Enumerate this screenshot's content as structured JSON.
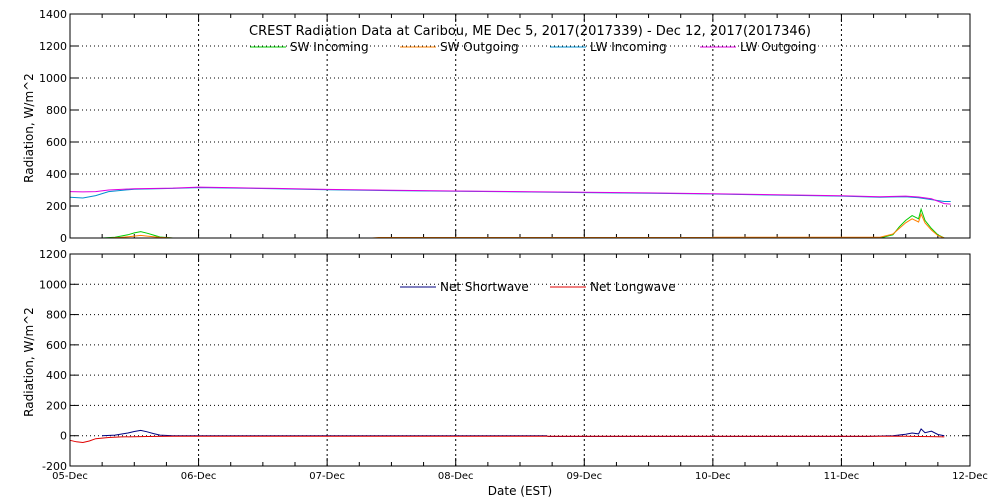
{
  "chart_data": {
    "title": "CREST Radiation Data at Caribou, ME   Dec  5, 2017(2017339) - Dec 12, 2017(2017346)",
    "xlabel": "Date (EST)",
    "x_ticks": [
      "05-Dec",
      "06-Dec",
      "07-Dec",
      "08-Dec",
      "09-Dec",
      "10-Dec",
      "11-Dec",
      "12-Dec"
    ],
    "xlim": [
      0,
      7
    ],
    "panels": [
      {
        "id": "top",
        "type": "line",
        "ylabel": "Radiation, W/m^2",
        "ylim": [
          0,
          1400
        ],
        "y_ticks": [
          0,
          200,
          400,
          600,
          800,
          1000,
          1200,
          1400
        ],
        "grid": true,
        "legend_position": "top",
        "series": [
          {
            "name": "SW Incoming",
            "color": "#00cc00",
            "x": [
              0.25,
              0.35,
              0.45,
              0.5,
              0.55,
              0.6,
              0.65,
              0.7,
              0.8,
              6.3,
              6.4,
              6.45,
              6.5,
              6.55,
              6.6,
              6.62,
              6.65,
              6.7,
              6.75,
              6.8
            ],
            "y": [
              0,
              5,
              20,
              32,
              40,
              30,
              18,
              6,
              0,
              0,
              20,
              70,
              110,
              140,
              120,
              180,
              110,
              60,
              20,
              0
            ]
          },
          {
            "name": "SW Outgoing",
            "color": "#ff8000",
            "x": [
              0.3,
              0.4,
              0.5,
              0.55,
              0.6,
              0.7,
              0.8,
              2.35,
              2.4,
              3.0,
              4.0,
              5.0,
              5.01,
              6.0,
              6.3,
              6.4,
              6.45,
              6.5,
              6.55,
              6.6,
              6.62,
              6.65,
              6.7,
              6.75,
              6.8
            ],
            "y": [
              0,
              4,
              12,
              16,
              12,
              4,
              0,
              0,
              3,
              3,
              3,
              3,
              5,
              5,
              5,
              25,
              60,
              95,
              120,
              100,
              150,
              95,
              50,
              15,
              0
            ]
          },
          {
            "name": "LW Incoming",
            "color": "#0090d0",
            "x": [
              0,
              0.1,
              0.2,
              0.3,
              0.5,
              0.8,
              1.0,
              1.3,
              1.6,
              2.0,
              2.5,
              3.0,
              3.5,
              4.0,
              4.5,
              5.0,
              5.5,
              6.0,
              6.3,
              6.5,
              6.6,
              6.7,
              6.8,
              6.85
            ],
            "y": [
              255,
              250,
              265,
              290,
              305,
              310,
              315,
              312,
              308,
              302,
              296,
              292,
              288,
              284,
              280,
              275,
              268,
              262,
              255,
              258,
              252,
              240,
              228,
              228
            ]
          },
          {
            "name": "LW Outgoing",
            "color": "#e000e0",
            "x": [
              0,
              0.1,
              0.2,
              0.3,
              0.5,
              0.8,
              1.0,
              1.3,
              1.6,
              2.0,
              2.5,
              3.0,
              3.5,
              4.0,
              4.5,
              5.0,
              5.5,
              6.0,
              6.3,
              6.5,
              6.6,
              6.7,
              6.8,
              6.85
            ],
            "y": [
              290,
              288,
              290,
              300,
              308,
              312,
              318,
              314,
              310,
              304,
              298,
              294,
              290,
              286,
              282,
              277,
              270,
              264,
              258,
              262,
              256,
              245,
              215,
              212
            ]
          }
        ]
      },
      {
        "id": "bottom",
        "type": "line",
        "ylabel": "Radiation, W/m^2",
        "ylim": [
          -200,
          1200
        ],
        "y_ticks": [
          -200,
          0,
          200,
          400,
          600,
          800,
          1000,
          1200
        ],
        "grid": true,
        "legend_position": "top",
        "series": [
          {
            "name": "Net Shortwave",
            "color": "#000080",
            "x": [
              0.25,
              0.35,
              0.45,
              0.5,
              0.55,
              0.6,
              0.65,
              0.7,
              0.8,
              3.7,
              3.72,
              6.2,
              6.4,
              6.5,
              6.55,
              6.6,
              6.62,
              6.65,
              6.7,
              6.75,
              6.8
            ],
            "y": [
              0,
              4,
              18,
              28,
              35,
              26,
              14,
              4,
              0,
              0,
              -5,
              -5,
              0,
              10,
              18,
              12,
              45,
              20,
              30,
              8,
              0
            ]
          },
          {
            "name": "Net Longwave",
            "color": "#e00000",
            "x": [
              0,
              0.05,
              0.1,
              0.15,
              0.2,
              0.3,
              0.4,
              0.6,
              0.8,
              1.0,
              1.5,
              2.0,
              3.0,
              4.0,
              5.0,
              6.0,
              6.3,
              6.5,
              6.6,
              6.7,
              6.8
            ],
            "y": [
              -30,
              -40,
              -45,
              -35,
              -20,
              -12,
              -8,
              -5,
              -4,
              -4,
              -4,
              -4,
              -4,
              -4,
              -4,
              -4,
              -4,
              -4,
              -5,
              -6,
              -8
            ]
          }
        ]
      }
    ]
  }
}
